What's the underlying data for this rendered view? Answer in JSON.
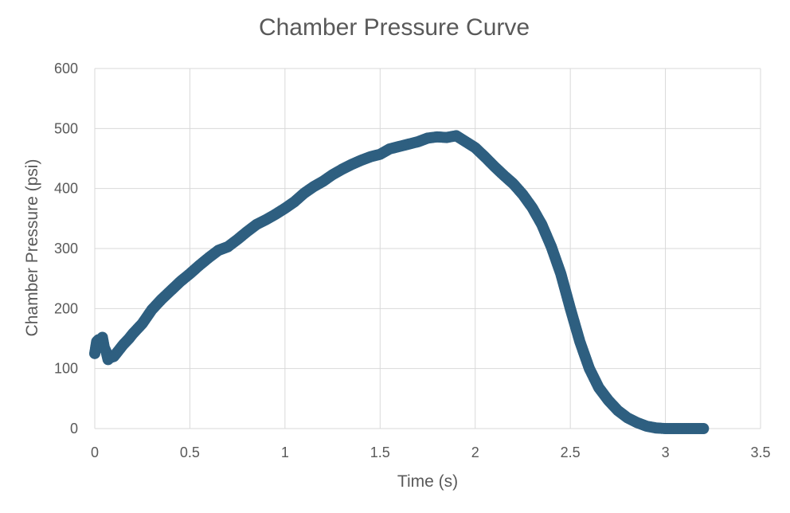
{
  "chart_data": {
    "type": "scatter",
    "title": "Chamber Pressure Curve",
    "xlabel": "Time (s)",
    "ylabel": "Chamber Pressure (psi)",
    "xlim": [
      0,
      3.5
    ],
    "ylim": [
      0,
      600
    ],
    "x_ticks": [
      0,
      0.5,
      1,
      1.5,
      2,
      2.5,
      3,
      3.5
    ],
    "x_tick_labels": [
      "0",
      "0.5",
      "1",
      "1.5",
      "2",
      "2.5",
      "3",
      "3.5"
    ],
    "y_ticks": [
      0,
      100,
      200,
      300,
      400,
      500,
      600
    ],
    "y_tick_labels": [
      "0",
      "100",
      "200",
      "300",
      "400",
      "500",
      "600"
    ],
    "grid": true,
    "legend": "none",
    "marker_color": "#2e5f80",
    "series": [
      {
        "name": "Chamber Pressure",
        "x": [
          0.0,
          0.01,
          0.02,
          0.03,
          0.04,
          0.05,
          0.06,
          0.07,
          0.08,
          0.1,
          0.12,
          0.15,
          0.18,
          0.2,
          0.25,
          0.3,
          0.35,
          0.4,
          0.45,
          0.5,
          0.55,
          0.6,
          0.65,
          0.7,
          0.75,
          0.8,
          0.85,
          0.9,
          0.95,
          1.0,
          1.05,
          1.1,
          1.15,
          1.2,
          1.25,
          1.3,
          1.35,
          1.4,
          1.45,
          1.5,
          1.55,
          1.6,
          1.65,
          1.7,
          1.75,
          1.8,
          1.85,
          1.9,
          1.95,
          2.0,
          2.05,
          2.1,
          2.15,
          2.2,
          2.25,
          2.3,
          2.35,
          2.4,
          2.45,
          2.5,
          2.55,
          2.6,
          2.65,
          2.7,
          2.75,
          2.8,
          2.85,
          2.9,
          2.95,
          3.0,
          3.05,
          3.1,
          3.15,
          3.2
        ],
        "y": [
          125,
          145,
          148,
          140,
          152,
          135,
          128,
          115,
          118,
          120,
          128,
          140,
          150,
          158,
          175,
          198,
          215,
          230,
          245,
          258,
          272,
          285,
          297,
          303,
          315,
          328,
          340,
          348,
          357,
          367,
          378,
          392,
          403,
          412,
          423,
          432,
          440,
          447,
          453,
          457,
          466,
          470,
          474,
          478,
          484,
          486,
          485,
          488,
          478,
          468,
          453,
          437,
          422,
          408,
          390,
          368,
          340,
          303,
          258,
          200,
          145,
          100,
          68,
          47,
          30,
          18,
          10,
          4,
          1,
          0,
          0,
          0,
          0,
          0
        ]
      }
    ]
  }
}
